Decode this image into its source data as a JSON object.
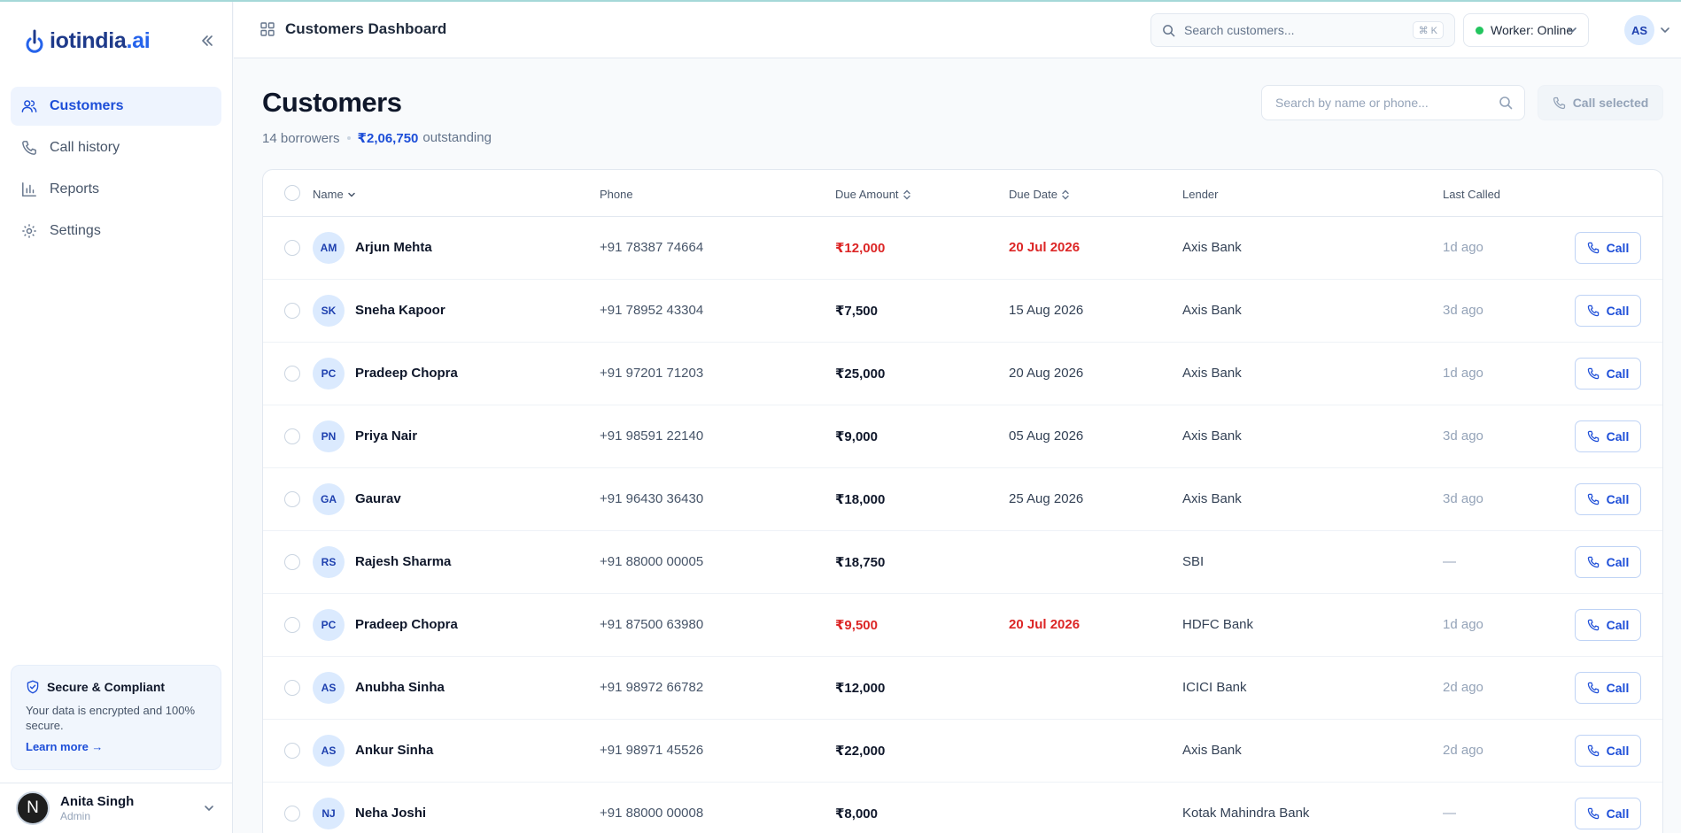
{
  "brand": {
    "name": "iotindia",
    "tld": ".ai"
  },
  "sidebar": {
    "items": [
      {
        "label": "Customers",
        "icon": "users-icon",
        "active": true
      },
      {
        "label": "Call history",
        "icon": "phone-icon",
        "active": false
      },
      {
        "label": "Reports",
        "icon": "bar-chart-icon",
        "active": false
      },
      {
        "label": "Settings",
        "icon": "gear-icon",
        "active": false
      }
    ],
    "secure": {
      "title": "Secure & Compliant",
      "text": "Your data is encrypted and 100% secure.",
      "link": "Learn more →"
    },
    "user": {
      "initial": "N",
      "name": "Anita Singh",
      "role": "Admin"
    }
  },
  "topbar": {
    "title": "Customers Dashboard",
    "search_placeholder": "Search customers...",
    "shortcut": "⌘ K",
    "worker_status": "Worker: Online",
    "avatar": "AS"
  },
  "main": {
    "title": "Customers",
    "borrowers": "14 borrowers",
    "outstanding_amount": "₹2,06,750",
    "outstanding_label": "outstanding",
    "search_placeholder": "Search by name or phone...",
    "call_selected": "Call selected"
  },
  "table": {
    "headers": {
      "name": "Name",
      "phone": "Phone",
      "due_amount": "Due Amount",
      "due_date": "Due Date",
      "lender": "Lender",
      "last_called": "Last Called"
    },
    "call_label": "Call",
    "rows": [
      {
        "initials": "AM",
        "name": "Arjun Mehta",
        "phone": "+91 78387 74664",
        "due": "₹12,000",
        "date": "20 Jul 2026",
        "lender": "Axis Bank",
        "last": "1d ago",
        "overdue": true
      },
      {
        "initials": "SK",
        "name": "Sneha Kapoor",
        "phone": "+91 78952 43304",
        "due": "₹7,500",
        "date": "15 Aug 2026",
        "lender": "Axis Bank",
        "last": "3d ago",
        "overdue": false
      },
      {
        "initials": "PC",
        "name": "Pradeep Chopra",
        "phone": "+91 97201 71203",
        "due": "₹25,000",
        "date": "20 Aug 2026",
        "lender": "Axis Bank",
        "last": "1d ago",
        "overdue": false
      },
      {
        "initials": "PN",
        "name": "Priya Nair",
        "phone": "+91 98591 22140",
        "due": "₹9,000",
        "date": "05 Aug 2026",
        "lender": "Axis Bank",
        "last": "3d ago",
        "overdue": false
      },
      {
        "initials": "GA",
        "name": "Gaurav",
        "phone": "+91 96430 36430",
        "due": "₹18,000",
        "date": "25 Aug 2026",
        "lender": "Axis Bank",
        "last": "3d ago",
        "overdue": false
      },
      {
        "initials": "RS",
        "name": "Rajesh Sharma",
        "phone": "+91 88000 00005",
        "due": "₹18,750",
        "date": "",
        "lender": "SBI",
        "last": "—",
        "overdue": false
      },
      {
        "initials": "PC",
        "name": "Pradeep Chopra",
        "phone": "+91 87500 63980",
        "due": "₹9,500",
        "date": "20 Jul 2026",
        "lender": "HDFC Bank",
        "last": "1d ago",
        "overdue": true
      },
      {
        "initials": "AS",
        "name": "Anubha Sinha",
        "phone": "+91 98972 66782",
        "due": "₹12,000",
        "date": "",
        "lender": "ICICI Bank",
        "last": "2d ago",
        "overdue": false
      },
      {
        "initials": "AS",
        "name": "Ankur Sinha",
        "phone": "+91 98971 45526",
        "due": "₹22,000",
        "date": "",
        "lender": "Axis Bank",
        "last": "2d ago",
        "overdue": false
      },
      {
        "initials": "NJ",
        "name": "Neha Joshi",
        "phone": "+91 88000 00008",
        "due": "₹8,000",
        "date": "",
        "lender": "Kotak Mahindra Bank",
        "last": "—",
        "overdue": false
      }
    ]
  },
  "colors": {
    "accent": "#1d4ed8",
    "overdue": "#dc2626",
    "online": "#22c55e"
  }
}
